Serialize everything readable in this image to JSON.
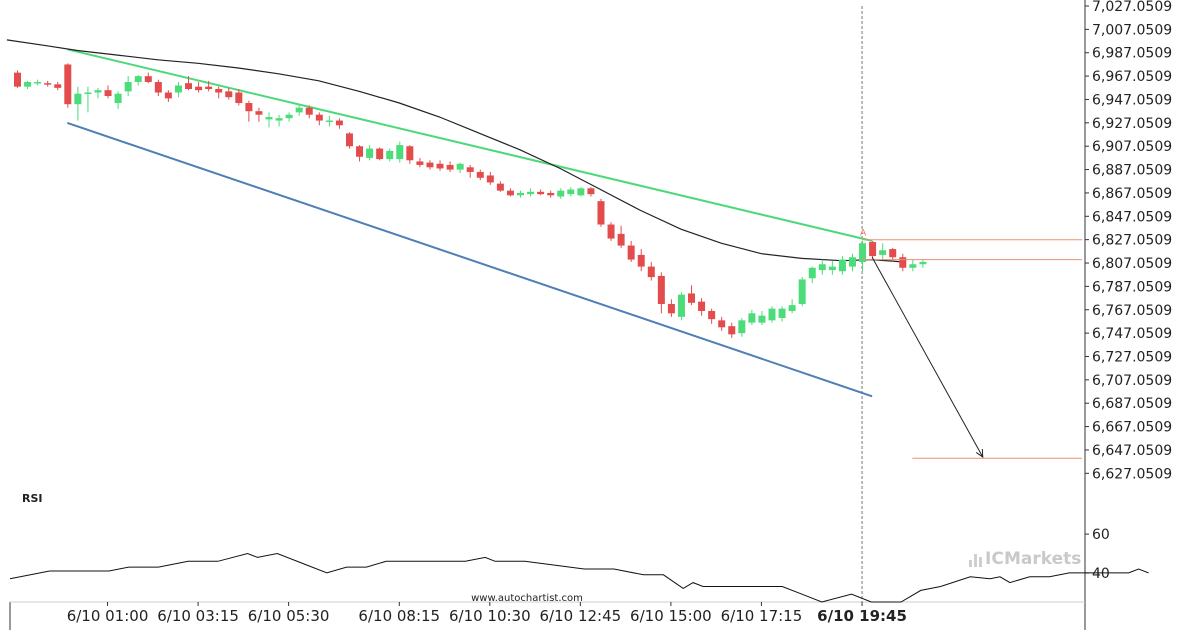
{
  "chart_data": {
    "type": "candlestick",
    "price_axis": {
      "min": 6617.0509,
      "max": 7027.0509,
      "ticks": [
        "7,027.0509",
        "7,007.0509",
        "6,987.0509",
        "6,967.0509",
        "6,947.0509",
        "6,927.0509",
        "6,907.0509",
        "6,887.0509",
        "6,867.0509",
        "6,847.0509",
        "6,827.0509",
        "6,807.0509",
        "6,787.0509",
        "6,767.0509",
        "6,747.0509",
        "6,727.0509",
        "6,707.0509",
        "6,687.0509",
        "6,667.0509",
        "6,647.0509",
        "6,627.0509"
      ]
    },
    "time_axis": {
      "bars_total": 77,
      "labels": [
        {
          "text": "6/10 01:00",
          "bar": 9,
          "bold": false
        },
        {
          "text": "6/10 03:15",
          "bar": 18,
          "bold": false
        },
        {
          "text": "6/10 05:30",
          "bar": 27,
          "bold": false
        },
        {
          "text": "6/10 08:15",
          "bar": 38,
          "bold": false
        },
        {
          "text": "6/10 10:30",
          "bar": 47,
          "bold": false
        },
        {
          "text": "6/10 12:45",
          "bar": 56,
          "bold": false
        },
        {
          "text": "6/10 15:00",
          "bar": 65,
          "bold": false
        },
        {
          "text": "6/10 17:15",
          "bar": 74,
          "bold": false
        },
        {
          "text": "6/10 19:45",
          "bar": 84,
          "bold": true
        }
      ]
    },
    "candles": [
      {
        "o": 6970,
        "h": 6972,
        "l": 6957,
        "c": 6958
      },
      {
        "o": 6958,
        "h": 6963,
        "l": 6956,
        "c": 6962
      },
      {
        "o": 6962,
        "h": 6964,
        "l": 6959,
        "c": 6962
      },
      {
        "o": 6961,
        "h": 6963,
        "l": 6958,
        "c": 6960
      },
      {
        "o": 6960,
        "h": 6962,
        "l": 6955,
        "c": 6957
      },
      {
        "o": 6977,
        "h": 6978,
        "l": 6940,
        "c": 6943
      },
      {
        "o": 6943,
        "h": 6958,
        "l": 6929,
        "c": 6952
      },
      {
        "o": 6952,
        "h": 6958,
        "l": 6936,
        "c": 6953
      },
      {
        "o": 6953,
        "h": 6957,
        "l": 6948,
        "c": 6955
      },
      {
        "o": 6955,
        "h": 6959,
        "l": 6948,
        "c": 6950
      },
      {
        "o": 6944,
        "h": 6954,
        "l": 6939,
        "c": 6952
      },
      {
        "o": 6954,
        "h": 6967,
        "l": 6950,
        "c": 6962
      },
      {
        "o": 6962,
        "h": 6968,
        "l": 6959,
        "c": 6967
      },
      {
        "o": 6967,
        "h": 6970,
        "l": 6961,
        "c": 6962
      },
      {
        "o": 6962,
        "h": 6964,
        "l": 6950,
        "c": 6953
      },
      {
        "o": 6953,
        "h": 6955,
        "l": 6945,
        "c": 6948
      },
      {
        "o": 6953,
        "h": 6962,
        "l": 6949,
        "c": 6959
      },
      {
        "o": 6961,
        "h": 6967,
        "l": 6955,
        "c": 6956
      },
      {
        "o": 6958,
        "h": 6962,
        "l": 6953,
        "c": 6955
      },
      {
        "o": 6958,
        "h": 6963,
        "l": 6954,
        "c": 6956
      },
      {
        "o": 6956,
        "h": 6958,
        "l": 6948,
        "c": 6953
      },
      {
        "o": 6954,
        "h": 6957,
        "l": 6947,
        "c": 6949
      },
      {
        "o": 6953,
        "h": 6956,
        "l": 6942,
        "c": 6944
      },
      {
        "o": 6944,
        "h": 6946,
        "l": 6928,
        "c": 6937
      },
      {
        "o": 6937,
        "h": 6940,
        "l": 6928,
        "c": 6934
      },
      {
        "o": 6930,
        "h": 6936,
        "l": 6923,
        "c": 6932
      },
      {
        "o": 6929,
        "h": 6934,
        "l": 6924,
        "c": 6931
      },
      {
        "o": 6931,
        "h": 6936,
        "l": 6928,
        "c": 6934
      },
      {
        "o": 6936,
        "h": 6943,
        "l": 6933,
        "c": 6940
      },
      {
        "o": 6940,
        "h": 6942,
        "l": 6931,
        "c": 6934
      },
      {
        "o": 6934,
        "h": 6936,
        "l": 6925,
        "c": 6929
      },
      {
        "o": 6929,
        "h": 6933,
        "l": 6924,
        "c": 6929
      },
      {
        "o": 6929,
        "h": 6931,
        "l": 6922,
        "c": 6925
      },
      {
        "o": 6918,
        "h": 6919,
        "l": 6905,
        "c": 6907
      },
      {
        "o": 6907,
        "h": 6908,
        "l": 6894,
        "c": 6898
      },
      {
        "o": 6897,
        "h": 6908,
        "l": 6895,
        "c": 6905
      },
      {
        "o": 6905,
        "h": 6906,
        "l": 6895,
        "c": 6896
      },
      {
        "o": 6896,
        "h": 6905,
        "l": 6894,
        "c": 6903
      },
      {
        "o": 6896,
        "h": 6911,
        "l": 6893,
        "c": 6908
      },
      {
        "o": 6907,
        "h": 6908,
        "l": 6892,
        "c": 6895
      },
      {
        "o": 6894,
        "h": 6897,
        "l": 6889,
        "c": 6891
      },
      {
        "o": 6893,
        "h": 6895,
        "l": 6887,
        "c": 6889
      },
      {
        "o": 6892,
        "h": 6895,
        "l": 6886,
        "c": 6888
      },
      {
        "o": 6891,
        "h": 6894,
        "l": 6885,
        "c": 6887
      },
      {
        "o": 6887,
        "h": 6893,
        "l": 6884,
        "c": 6892
      },
      {
        "o": 6889,
        "h": 6891,
        "l": 6880,
        "c": 6885
      },
      {
        "o": 6885,
        "h": 6887,
        "l": 6878,
        "c": 6880
      },
      {
        "o": 6882,
        "h": 6885,
        "l": 6874,
        "c": 6876
      },
      {
        "o": 6875,
        "h": 6877,
        "l": 6868,
        "c": 6869
      },
      {
        "o": 6869,
        "h": 6871,
        "l": 6864,
        "c": 6865
      },
      {
        "o": 6865,
        "h": 6869,
        "l": 6863,
        "c": 6867
      },
      {
        "o": 6866,
        "h": 6871,
        "l": 6864,
        "c": 6868
      },
      {
        "o": 6868,
        "h": 6870,
        "l": 6865,
        "c": 6866
      },
      {
        "o": 6867,
        "h": 6869,
        "l": 6863,
        "c": 6865
      },
      {
        "o": 6864,
        "h": 6871,
        "l": 6862,
        "c": 6869
      },
      {
        "o": 6866,
        "h": 6872,
        "l": 6864,
        "c": 6870
      },
      {
        "o": 6865,
        "h": 6872,
        "l": 6864,
        "c": 6871
      },
      {
        "o": 6871,
        "h": 6872,
        "l": 6864,
        "c": 6866
      },
      {
        "o": 6860,
        "h": 6862,
        "l": 6838,
        "c": 6840
      },
      {
        "o": 6840,
        "h": 6842,
        "l": 6826,
        "c": 6828
      },
      {
        "o": 6832,
        "h": 6839,
        "l": 6820,
        "c": 6822
      },
      {
        "o": 6822,
        "h": 6826,
        "l": 6808,
        "c": 6810
      },
      {
        "o": 6814,
        "h": 6819,
        "l": 6800,
        "c": 6804
      },
      {
        "o": 6804,
        "h": 6808,
        "l": 6792,
        "c": 6795
      },
      {
        "o": 6796,
        "h": 6799,
        "l": 6764,
        "c": 6772
      },
      {
        "o": 6772,
        "h": 6776,
        "l": 6761,
        "c": 6764
      },
      {
        "o": 6761,
        "h": 6782,
        "l": 6758,
        "c": 6780
      },
      {
        "o": 6781,
        "h": 6788,
        "l": 6771,
        "c": 6773
      },
      {
        "o": 6774,
        "h": 6777,
        "l": 6762,
        "c": 6766
      },
      {
        "o": 6766,
        "h": 6768,
        "l": 6755,
        "c": 6759
      },
      {
        "o": 6758,
        "h": 6761,
        "l": 6749,
        "c": 6752
      },
      {
        "o": 6753,
        "h": 6756,
        "l": 6743,
        "c": 6746
      },
      {
        "o": 6747,
        "h": 6760,
        "l": 6744,
        "c": 6758
      },
      {
        "o": 6756,
        "h": 6767,
        "l": 6754,
        "c": 6764
      },
      {
        "o": 6756,
        "h": 6766,
        "l": 6754,
        "c": 6762
      },
      {
        "o": 6758,
        "h": 6770,
        "l": 6756,
        "c": 6768
      },
      {
        "o": 6760,
        "h": 6770,
        "l": 6757,
        "c": 6768
      }
    ],
    "extra_candles": [
      {
        "o": 6766,
        "h": 6776,
        "l": 6764,
        "c": 6771
      },
      {
        "o": 6772,
        "h": 6795,
        "l": 6770,
        "c": 6793
      },
      {
        "o": 6794,
        "h": 6804,
        "l": 6790,
        "c": 6803
      },
      {
        "o": 6801,
        "h": 6810,
        "l": 6797,
        "c": 6806
      },
      {
        "o": 6801,
        "h": 6809,
        "l": 6797,
        "c": 6804
      },
      {
        "o": 6800,
        "h": 6813,
        "l": 6797,
        "c": 6810
      },
      {
        "o": 6804,
        "h": 6815,
        "l": 6800,
        "c": 6812
      },
      {
        "o": 6808,
        "h": 6826,
        "l": 6800,
        "c": 6824
      },
      {
        "o": 6825,
        "h": 6826,
        "l": 6811,
        "c": 6813
      },
      {
        "o": 6814,
        "h": 6824,
        "l": 6810,
        "c": 6818
      },
      {
        "o": 6819,
        "h": 6820,
        "l": 6808,
        "c": 6812
      },
      {
        "o": 6812,
        "h": 6815,
        "l": 6800,
        "c": 6803
      },
      {
        "o": 6803,
        "h": 6810,
        "l": 6800,
        "c": 6806
      },
      {
        "o": 6806,
        "h": 6810,
        "l": 6803,
        "c": 6808
      }
    ],
    "moving_average": [
      [
        -1,
        6998
      ],
      [
        3,
        6993
      ],
      [
        6,
        6989
      ],
      [
        10,
        6985
      ],
      [
        14,
        6981
      ],
      [
        18,
        6978
      ],
      [
        22,
        6974
      ],
      [
        26,
        6969
      ],
      [
        30,
        6963
      ],
      [
        34,
        6954
      ],
      [
        38,
        6944
      ],
      [
        42,
        6932
      ],
      [
        46,
        6918
      ],
      [
        50,
        6904
      ],
      [
        54,
        6888
      ],
      [
        58,
        6870
      ],
      [
        62,
        6852
      ],
      [
        66,
        6836
      ],
      [
        70,
        6824
      ],
      [
        74,
        6815
      ],
      [
        78,
        6811
      ],
      [
        82,
        6809
      ],
      [
        85,
        6810
      ],
      [
        88,
        6808
      ]
    ],
    "channel_upper": {
      "from": [
        5,
        6990
      ],
      "to": [
        85,
        6826
      ]
    },
    "channel_lower": {
      "from": [
        5,
        6927
      ],
      "to": [
        85,
        6693
      ]
    },
    "current_bar": 84,
    "breakout_marker": {
      "label": "A",
      "bar": 84,
      "price": 6829
    },
    "levels": [
      {
        "price": 6827,
        "from_bar": 84
      },
      {
        "price": 6810,
        "from_bar": 84
      },
      {
        "price": 6640,
        "from_bar": 89
      }
    ],
    "forecast_arrow": {
      "from": [
        85,
        6812
      ],
      "to": [
        96,
        6641
      ]
    },
    "rsi": {
      "label": "RSI",
      "min": 25,
      "max": 75,
      "ticks": [
        60,
        40
      ],
      "values": [
        [
          -1,
          37
        ],
        [
          3,
          41
        ],
        [
          6,
          41
        ],
        [
          9,
          41
        ],
        [
          11,
          43
        ],
        [
          14,
          43
        ],
        [
          17,
          46
        ],
        [
          20,
          46
        ],
        [
          23,
          50
        ],
        [
          24,
          48
        ],
        [
          26,
          50
        ],
        [
          29,
          44
        ],
        [
          31,
          40
        ],
        [
          33,
          43
        ],
        [
          35,
          43
        ],
        [
          37,
          46
        ],
        [
          40,
          46
        ],
        [
          43,
          46
        ],
        [
          45,
          46
        ],
        [
          47,
          48
        ],
        [
          48,
          46
        ],
        [
          51,
          46
        ],
        [
          54,
          44
        ],
        [
          57,
          42
        ],
        [
          60,
          42
        ],
        [
          63,
          39
        ],
        [
          65,
          39
        ],
        [
          67,
          32
        ],
        [
          68,
          35
        ],
        [
          69,
          33
        ],
        [
          72,
          33
        ],
        [
          75,
          33
        ],
        [
          77,
          33
        ],
        [
          79,
          29
        ],
        [
          81,
          25
        ],
        [
          84,
          29
        ],
        [
          86,
          25
        ],
        [
          89,
          25
        ],
        [
          91,
          31
        ],
        [
          93,
          33
        ],
        [
          96,
          38
        ],
        [
          98,
          37
        ],
        [
          99,
          38
        ],
        [
          100,
          35
        ],
        [
          102,
          38
        ],
        [
          104,
          38
        ],
        [
          106,
          40
        ],
        [
          108,
          40
        ],
        [
          110,
          40
        ],
        [
          112,
          40
        ],
        [
          113,
          42
        ],
        [
          114,
          40
        ]
      ]
    }
  },
  "labels": {
    "source": "www.autochartist.com",
    "brand_ic": "IC",
    "brand_markets": "Markets"
  },
  "colors": {
    "bull": "#4cdc7a",
    "bear": "#e34c4c",
    "channel_upper": "#4cd97a",
    "channel_lower": "#4f7fb5",
    "moving_average": "#222222",
    "level": "#e8906f",
    "arrow": "#222222",
    "rsi_line": "#111111",
    "axis": "#333333"
  }
}
